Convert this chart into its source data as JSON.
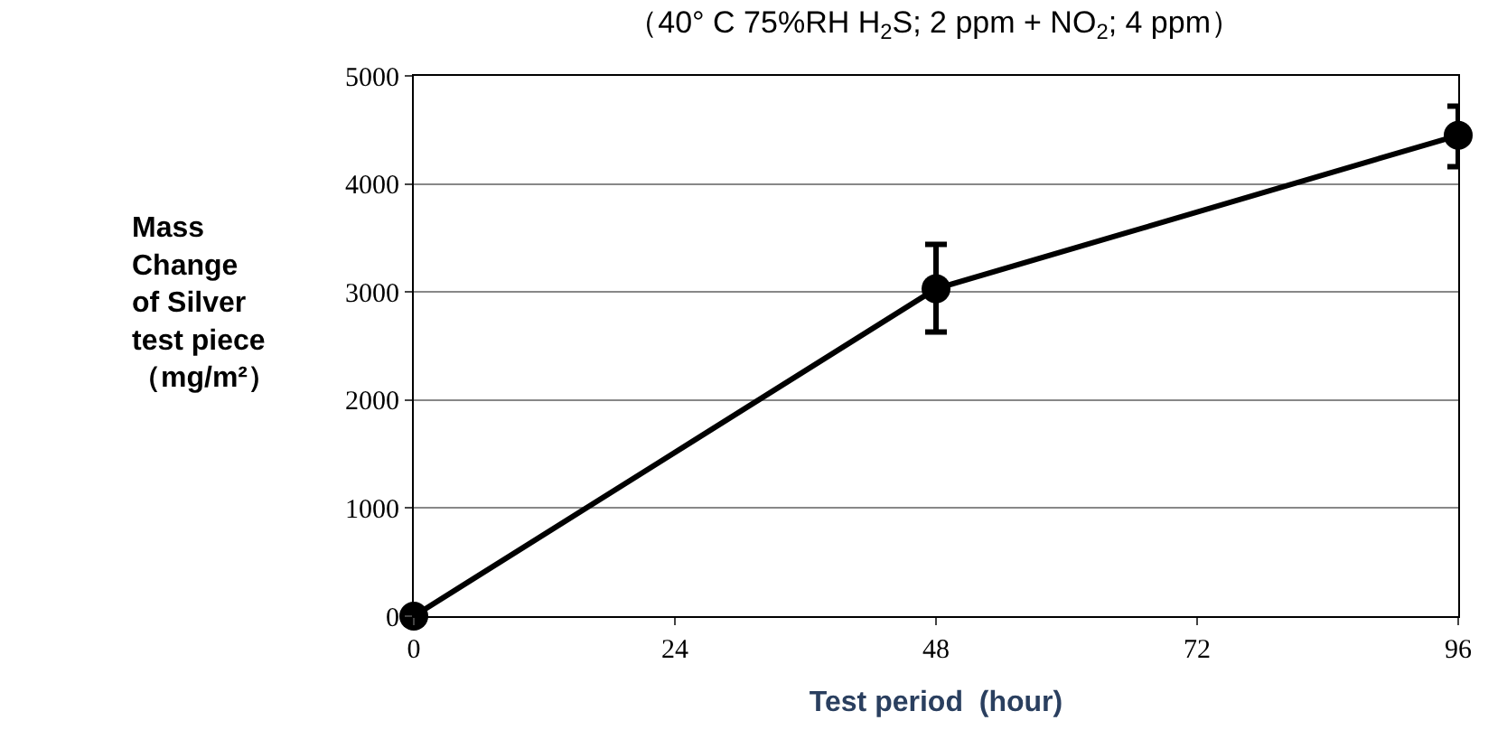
{
  "chart_data": {
    "type": "line",
    "title": "（40° C 75%RH H$_{2}$S; 2 ppm + NO$_{2}$; 4 ppm）",
    "xlabel": "Test period  (hour)",
    "ylabel": "Mass\nChange\nof Silver\ntest piece\n（mg/m²）",
    "x": [
      0,
      48,
      96
    ],
    "series": [
      {
        "color": "#000000",
        "values": [
          0,
          3030,
          4450
        ],
        "errors": [
          null,
          [
            2630,
            3440
          ],
          [
            4160,
            4720
          ]
        ]
      }
    ],
    "xlim": [
      0,
      96
    ],
    "xticks": [
      0,
      24,
      48,
      72,
      96
    ],
    "ylim": [
      0,
      5000
    ],
    "yticks": [
      0,
      1000,
      2000,
      3000,
      4000,
      5000
    ],
    "grid": "y",
    "legend": false,
    "marker": "circle",
    "line_style": "solid"
  }
}
